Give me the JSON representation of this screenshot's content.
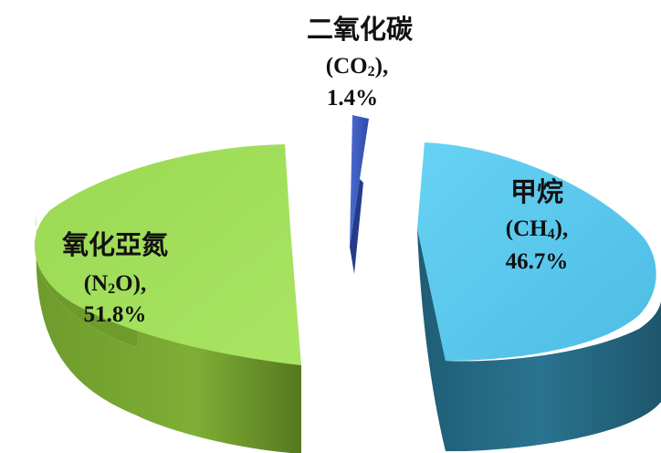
{
  "chart_data": {
    "type": "pie",
    "title": "",
    "legend": "none",
    "slices": [
      {
        "name": "二氧化碳",
        "formula": "CO",
        "subscript": "2",
        "value": 1.4,
        "pct_label": "1.4%",
        "color": "#3f5fc4"
      },
      {
        "name": "甲烷",
        "formula": "CH",
        "subscript": "4",
        "value": 46.7,
        "pct_label": "46.7%",
        "color": "#5ac8ec"
      },
      {
        "name": "氧化亞氮",
        "formula": "N",
        "subscript": "2",
        "formula_suffix": "O",
        "value": 51.8,
        "pct_label": "51.8%",
        "color": "#a3e05a"
      }
    ]
  }
}
